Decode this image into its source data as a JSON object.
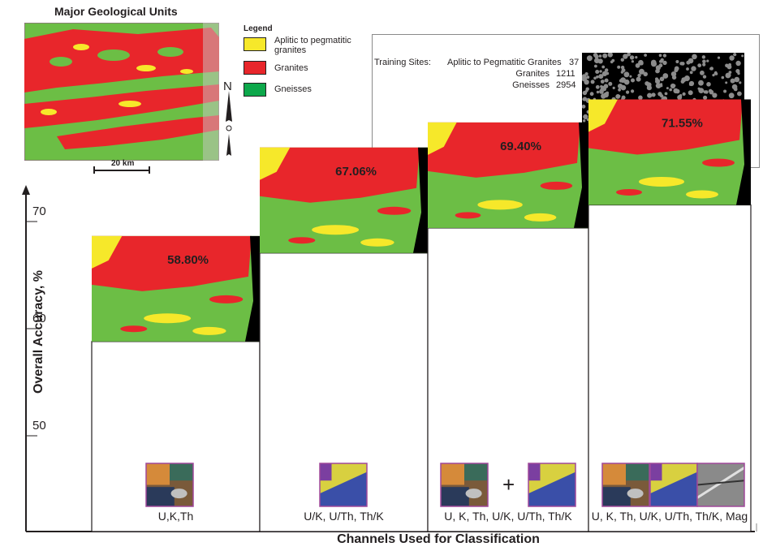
{
  "map": {
    "title": "Major Geological Units",
    "scale_label": "20 km",
    "north_label": "N"
  },
  "legend": {
    "title": "Legend",
    "entries": [
      {
        "label": "Aplitic to pegmatitic granites",
        "color": "#f6e82a"
      },
      {
        "label": "Granites",
        "color": "#e8262b"
      },
      {
        "label": "Gneisses",
        "color": "#0da84b"
      }
    ]
  },
  "training": {
    "title": "Training Sites:",
    "rows": [
      {
        "label": "Aplitic to Pegmatitic Granites",
        "count": "37"
      },
      {
        "label": "Granites",
        "count": "1211"
      },
      {
        "label": "Gneisses",
        "count": "2954"
      }
    ]
  },
  "colors": {
    "yellow": "#f6e82a",
    "red": "#e8262b",
    "green": "#6cbe45",
    "black": "#000000"
  },
  "chart_data": {
    "type": "bar",
    "xlabel": "Channels Used for Classification",
    "ylabel": "Overall Accuracy, %",
    "yticks": [
      50,
      60,
      70
    ],
    "categories": [
      "U,K,Th",
      "U/K,   U/Th,   Th/K",
      "U, K, Th, U/K, U/Th, Th/K",
      "U, K, Th, U/K, U/Th, Th/K, Mag"
    ],
    "values": [
      58.8,
      67.06,
      69.4,
      71.55
    ],
    "value_labels": [
      "58.80%",
      "67.06%",
      "69.40%",
      "71.55%"
    ],
    "plus_label": "+"
  }
}
